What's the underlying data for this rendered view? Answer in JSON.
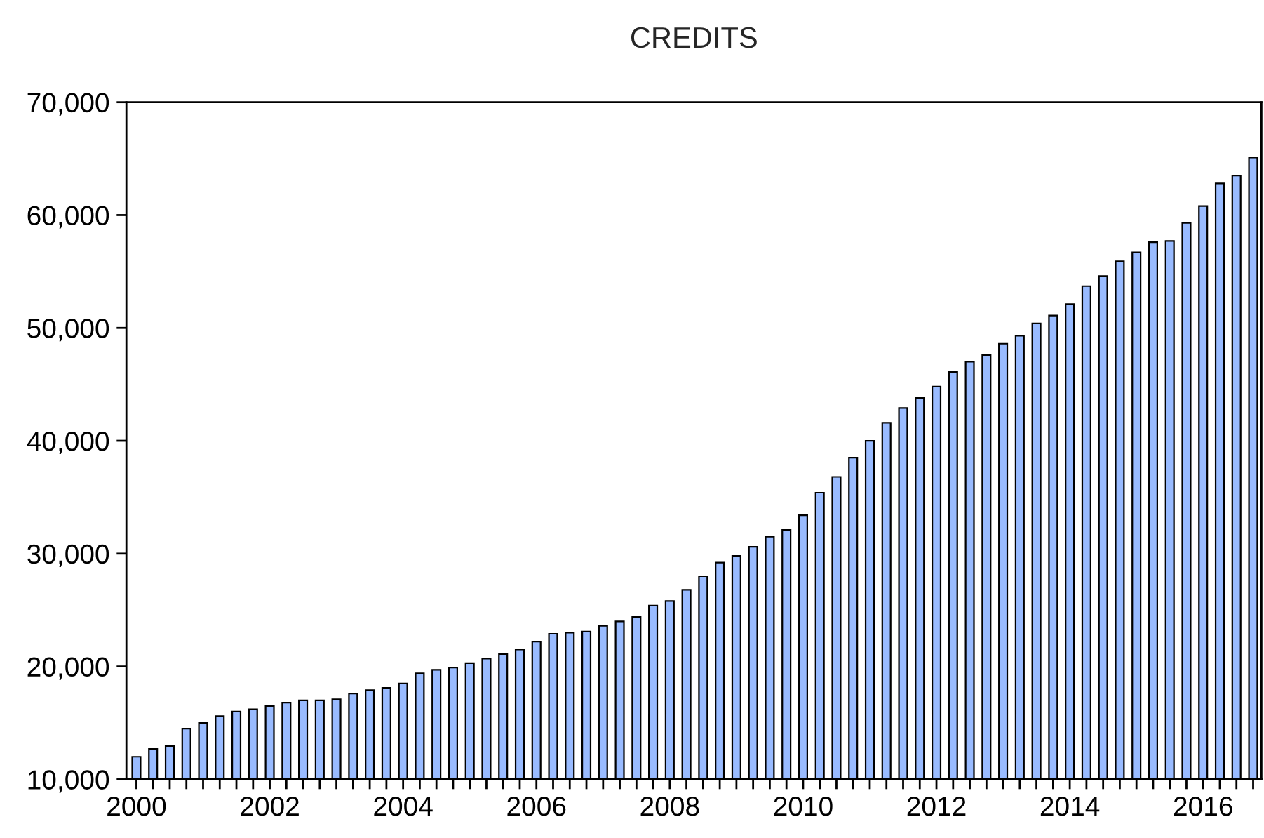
{
  "chart_data": {
    "type": "bar",
    "title": "CREDITS",
    "categories": [
      "2000",
      null,
      null,
      null,
      null,
      null,
      null,
      null,
      "2002",
      null,
      null,
      null,
      null,
      null,
      null,
      null,
      "2004",
      null,
      null,
      null,
      null,
      null,
      null,
      null,
      "2006",
      null,
      null,
      null,
      null,
      null,
      null,
      null,
      "2008",
      null,
      null,
      null,
      null,
      null,
      null,
      null,
      "2010",
      null,
      null,
      null,
      null,
      null,
      null,
      null,
      "2012",
      null,
      null,
      null,
      null,
      null,
      null,
      null,
      "2014",
      null,
      null,
      null,
      null,
      null,
      null,
      null,
      "2016",
      null,
      null,
      null
    ],
    "values": [
      12000,
      12700,
      12950,
      14500,
      15000,
      15600,
      16000,
      16200,
      16500,
      16800,
      17000,
      17000,
      17100,
      17600,
      17900,
      18100,
      18500,
      19400,
      19700,
      19900,
      20300,
      20700,
      21100,
      21500,
      22200,
      22900,
      23000,
      23100,
      23600,
      24000,
      24400,
      25400,
      25800,
      26800,
      28000,
      29200,
      29800,
      30600,
      31500,
      32100,
      33400,
      35400,
      36800,
      38500,
      40000,
      41600,
      42900,
      43800,
      44800,
      46100,
      47000,
      47600,
      48600,
      49300,
      50400,
      51100,
      52100,
      53700,
      54600,
      55900,
      56700,
      57600,
      57700,
      59300,
      60800,
      62800,
      63500,
      65100
    ],
    "color": "#99bbff",
    "ylim": [
      10000,
      70000
    ],
    "yticks": [
      {
        "value": 10000,
        "label": "10,000"
      },
      {
        "value": 20000,
        "label": "20,000"
      },
      {
        "value": 30000,
        "label": "30,000"
      },
      {
        "value": 40000,
        "label": "40,000"
      },
      {
        "value": 50000,
        "label": "50,000"
      },
      {
        "value": 60000,
        "label": "60,000"
      },
      {
        "value": 70000,
        "label": "70,000"
      }
    ],
    "grid": false,
    "legend": false
  }
}
